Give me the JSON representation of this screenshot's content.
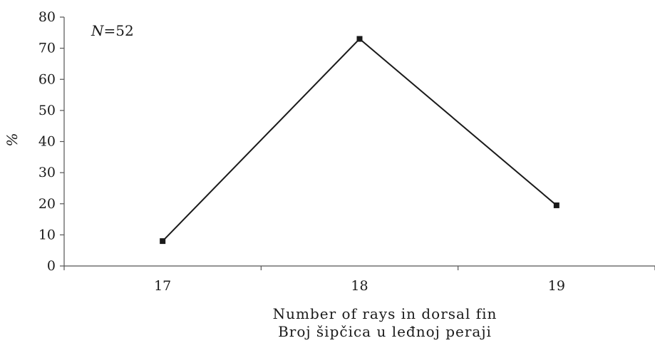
{
  "chart_data": {
    "type": "line",
    "title": "",
    "annotation_n_label": "N",
    "annotation_n_value": "=52",
    "categories": [
      "17",
      "18",
      "19"
    ],
    "values": [
      8,
      73,
      19.5
    ],
    "xlabel_line1": "Number of rays in dorsal fin",
    "xlabel_line2": "Broj šipčica u leđnoj peraji",
    "ylabel": "%",
    "ylim": [
      0,
      80
    ],
    "yticks": [
      0,
      10,
      20,
      30,
      40,
      50,
      60,
      70,
      80
    ],
    "grid": false,
    "line_color": "#1a1a1a",
    "marker": "square"
  }
}
